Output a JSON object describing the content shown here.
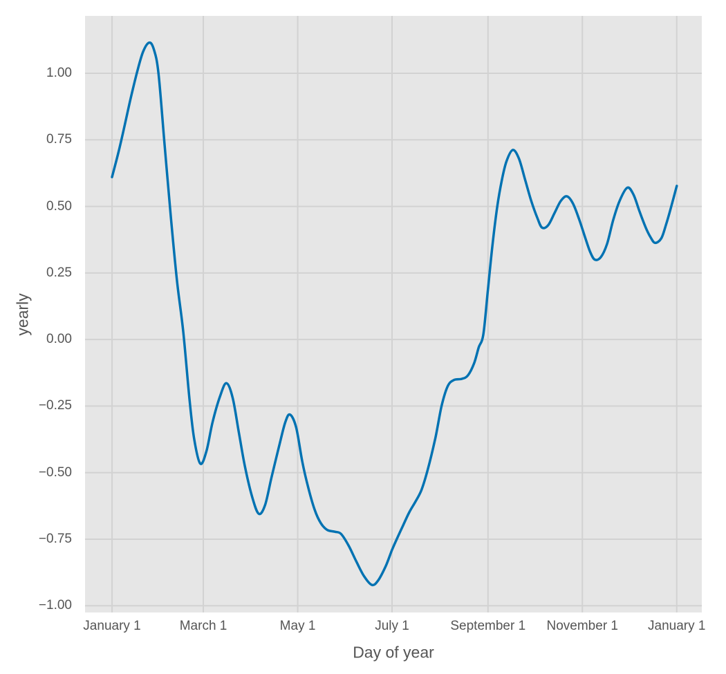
{
  "figure": {
    "background": "#ffffff",
    "plot_background": "#e6e6e6",
    "grid_color": "#d2d2d2",
    "text_color": "#555555"
  },
  "chart_data": {
    "type": "line",
    "title": "",
    "xlabel": "Day of year",
    "ylabel": "yearly",
    "legend_position": "none",
    "grid": true,
    "line_color": "#0072B2",
    "line_width": 3.5,
    "x_unit": "days since January 1",
    "x_range_days": [
      -17.45,
      381.2
    ],
    "y_range": [
      -1.0253,
      1.2156
    ],
    "x_ticks": [
      {
        "day": 0,
        "label": "January 1"
      },
      {
        "day": 59,
        "label": "March 1"
      },
      {
        "day": 120,
        "label": "May 1"
      },
      {
        "day": 181,
        "label": "July 1"
      },
      {
        "day": 243,
        "label": "September 1"
      },
      {
        "day": 304,
        "label": "November 1"
      },
      {
        "day": 365,
        "label": "January 1"
      }
    ],
    "y_ticks": [
      {
        "value": 1.0,
        "label": "1.00"
      },
      {
        "value": 0.75,
        "label": "0.75"
      },
      {
        "value": 0.5,
        "label": "0.50"
      },
      {
        "value": 0.25,
        "label": "0.25"
      },
      {
        "value": 0.0,
        "label": "0.00"
      },
      {
        "value": -0.25,
        "label": "−0.25"
      },
      {
        "value": -0.5,
        "label": "−0.50"
      },
      {
        "value": -0.75,
        "label": "−0.75"
      },
      {
        "value": -1.0,
        "label": "−1.00"
      }
    ],
    "series": [
      {
        "name": "yearly",
        "points": [
          [
            0,
            0.61
          ],
          [
            4,
            0.7
          ],
          [
            8,
            0.8
          ],
          [
            12,
            0.905
          ],
          [
            16,
            1.0
          ],
          [
            20,
            1.08
          ],
          [
            24,
            1.115
          ],
          [
            27,
            1.09
          ],
          [
            30,
            1.0
          ],
          [
            34,
            0.73
          ],
          [
            38,
            0.46
          ],
          [
            42,
            0.22
          ],
          [
            46,
            0.03
          ],
          [
            50,
            -0.22
          ],
          [
            53,
            -0.37
          ],
          [
            57,
            -0.466
          ],
          [
            61,
            -0.42
          ],
          [
            65,
            -0.31
          ],
          [
            70,
            -0.21
          ],
          [
            74,
            -0.164
          ],
          [
            78,
            -0.22
          ],
          [
            82,
            -0.35
          ],
          [
            86,
            -0.48
          ],
          [
            91,
            -0.6
          ],
          [
            95,
            -0.655
          ],
          [
            99,
            -0.62
          ],
          [
            103,
            -0.52
          ],
          [
            108,
            -0.4
          ],
          [
            112,
            -0.31
          ],
          [
            115,
            -0.282
          ],
          [
            119,
            -0.33
          ],
          [
            123,
            -0.46
          ],
          [
            127,
            -0.56
          ],
          [
            131,
            -0.64
          ],
          [
            135,
            -0.69
          ],
          [
            139,
            -0.715
          ],
          [
            144,
            -0.722
          ],
          [
            148,
            -0.73
          ],
          [
            153,
            -0.775
          ],
          [
            158,
            -0.835
          ],
          [
            163,
            -0.89
          ],
          [
            168,
            -0.922
          ],
          [
            172,
            -0.905
          ],
          [
            177,
            -0.85
          ],
          [
            181,
            -0.79
          ],
          [
            184,
            -0.75
          ],
          [
            188,
            -0.7
          ],
          [
            192,
            -0.65
          ],
          [
            196,
            -0.61
          ],
          [
            200,
            -0.565
          ],
          [
            204,
            -0.49
          ],
          [
            209,
            -0.37
          ],
          [
            213,
            -0.25
          ],
          [
            217,
            -0.175
          ],
          [
            221,
            -0.152
          ],
          [
            226,
            -0.148
          ],
          [
            230,
            -0.135
          ],
          [
            234,
            -0.09
          ],
          [
            237,
            -0.03
          ],
          [
            240,
            0.02
          ],
          [
            243,
            0.19
          ],
          [
            246,
            0.36
          ],
          [
            249,
            0.5
          ],
          [
            252,
            0.6
          ],
          [
            255,
            0.67
          ],
          [
            259,
            0.712
          ],
          [
            263,
            0.68
          ],
          [
            267,
            0.6
          ],
          [
            271,
            0.52
          ],
          [
            275,
            0.455
          ],
          [
            278,
            0.42
          ],
          [
            282,
            0.43
          ],
          [
            286,
            0.475
          ],
          [
            290,
            0.52
          ],
          [
            294,
            0.538
          ],
          [
            298,
            0.51
          ],
          [
            302,
            0.45
          ],
          [
            306,
            0.38
          ],
          [
            309,
            0.33
          ],
          [
            312,
            0.3
          ],
          [
            316,
            0.31
          ],
          [
            320,
            0.36
          ],
          [
            324,
            0.45
          ],
          [
            328,
            0.52
          ],
          [
            333,
            0.57
          ],
          [
            337,
            0.545
          ],
          [
            341,
            0.48
          ],
          [
            345,
            0.42
          ],
          [
            348,
            0.385
          ],
          [
            351,
            0.363
          ],
          [
            355,
            0.38
          ],
          [
            358,
            0.43
          ],
          [
            361,
            0.49
          ],
          [
            365,
            0.577
          ]
        ]
      }
    ]
  }
}
